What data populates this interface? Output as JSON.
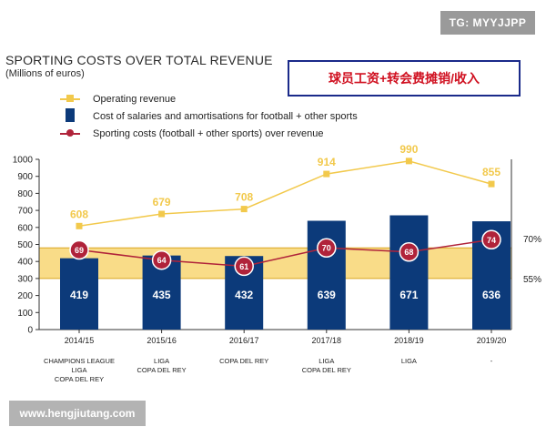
{
  "watermark_top": "TG: MYYJJPP",
  "watermark_bottom": "www.hengjiutang.com",
  "annotation_box": "球员工资+转会费摊销/收入",
  "colors": {
    "revenue": "#f2c94c",
    "bars": "#0c3a7a",
    "ratio": "#b0233a",
    "band": "#f7d060"
  },
  "chart_data": {
    "type": "bar",
    "title": "SPORTING COSTS OVER TOTAL REVENUE",
    "subtitle": "(Millions of euros)",
    "categories": [
      "2014/15",
      "2015/16",
      "2016/17",
      "2017/18",
      "2018/19",
      "2019/20"
    ],
    "category_notes": [
      [
        "CHAMPIONS LEAGUE",
        "LIGA",
        "COPA DEL REY"
      ],
      [
        "LIGA",
        "COPA DEL REY"
      ],
      [
        "COPA DEL REY"
      ],
      [
        "LIGA",
        "COPA DEL REY"
      ],
      [
        "LIGA"
      ],
      [
        "-"
      ]
    ],
    "ylim": [
      0,
      1000
    ],
    "yticks": [
      0,
      100,
      200,
      300,
      400,
      500,
      600,
      700,
      800,
      900,
      1000
    ],
    "band": {
      "from_percent": 55,
      "to_percent": 70,
      "labels": [
        "70%",
        "55%"
      ]
    },
    "series": [
      {
        "name": "Operating revenue",
        "kind": "line",
        "values": [
          608,
          679,
          708,
          914,
          990,
          855
        ]
      },
      {
        "name": "Cost of salaries and amortisations for football + other sports",
        "kind": "bar",
        "values": [
          419,
          435,
          432,
          639,
          671,
          636
        ]
      },
      {
        "name": "Sporting costs (football + other sports) over revenue",
        "kind": "line",
        "values": [
          69,
          64,
          61,
          70,
          68,
          74
        ]
      }
    ],
    "legend_position": "top-left"
  }
}
